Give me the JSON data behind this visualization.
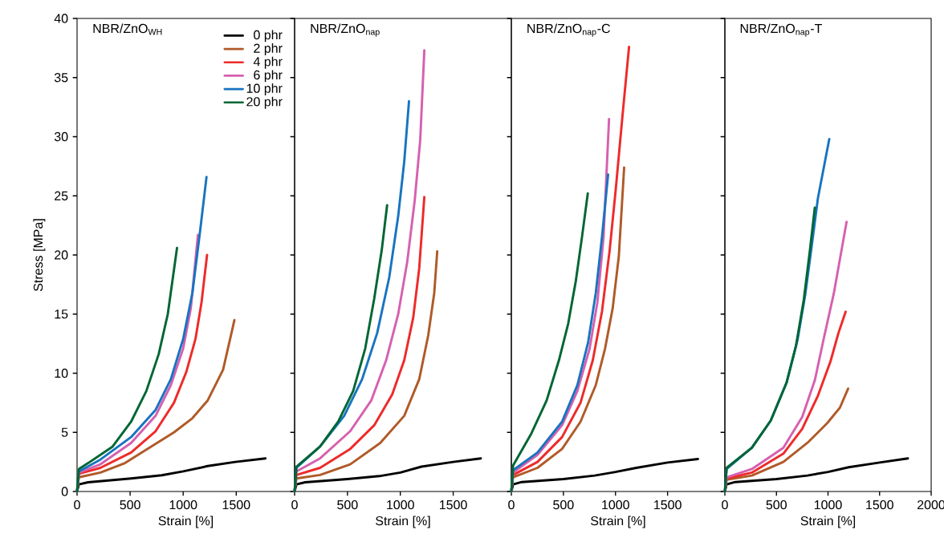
{
  "chart_data": [
    {
      "type": "line",
      "title": "NBR/ZnO$_{WH}$",
      "xlabel": "Strain [%]",
      "ylabel": "Stress [MPa]",
      "xlim": [
        0,
        2050
      ],
      "ylim": [
        0,
        40
      ],
      "xticks": [
        0,
        500,
        1000,
        1500
      ],
      "yticks": [
        0,
        5,
        10,
        15,
        20,
        25,
        30,
        35,
        40
      ],
      "legend": "top right",
      "series": [
        {
          "name": "0 phr",
          "color": "#000000",
          "x": [
            0,
            17,
            104,
            509,
            798,
            1000,
            1231,
            1491,
            1775
          ],
          "values": [
            0,
            0.6,
            0.78,
            1.1,
            1.37,
            1.7,
            2.15,
            2.5,
            2.8
          ]
        },
        {
          "name": "2 phr",
          "color": "#b05a28",
          "x": [
            0,
            17,
            220,
            451,
            682,
            913,
            1087,
            1231,
            1376,
            1483
          ],
          "values": [
            0,
            1.2,
            1.6,
            2.4,
            3.7,
            5.0,
            6.2,
            7.7,
            10.3,
            14.5
          ]
        },
        {
          "name": "4 phr",
          "color": "#ee2a2a",
          "x": [
            0,
            17,
            220,
            509,
            740,
            913,
            1029,
            1116,
            1173,
            1225
          ],
          "values": [
            0,
            1.5,
            2.0,
            3.3,
            5.1,
            7.5,
            10.1,
            12.9,
            16.0,
            20.0
          ]
        },
        {
          "name": "6 phr",
          "color": "#d660b0",
          "x": [
            0,
            17,
            220,
            509,
            740,
            884,
            1000,
            1072,
            1139
          ],
          "values": [
            0,
            1.6,
            2.3,
            4.1,
            6.4,
            9.0,
            12.1,
            15.5,
            21.7
          ]
        },
        {
          "name": "10 phr",
          "color": "#1874c0",
          "x": [
            0,
            17,
            220,
            509,
            740,
            884,
            1000,
            1087,
            1159,
            1220
          ],
          "values": [
            0,
            1.7,
            2.7,
            4.6,
            6.9,
            9.5,
            12.9,
            16.8,
            22.0,
            26.6
          ]
        },
        {
          "name": "20 phr",
          "color": "#006633",
          "x": [
            0,
            17,
            104,
            335,
            509,
            653,
            769,
            855,
            942
          ],
          "values": [
            0,
            1.9,
            2.4,
            3.8,
            5.9,
            8.5,
            11.6,
            15.0,
            20.6
          ]
        }
      ]
    },
    {
      "type": "line",
      "title": "NBR/ZnO$_{nap}$",
      "xlabel": "Strain [%]",
      "xlim": [
        0,
        2050
      ],
      "ylim": [
        0,
        40
      ],
      "xticks": [
        0,
        500,
        1000,
        1500
      ],
      "yticks": [
        0,
        5,
        10,
        15,
        20,
        25,
        30,
        35,
        40
      ],
      "tick_labels": "x",
      "series": [
        {
          "color": "#000000",
          "x": [
            0,
            17,
            100,
            500,
            800,
            1000,
            1200,
            1500,
            1761
          ],
          "values": [
            0,
            0.6,
            0.78,
            1.05,
            1.3,
            1.6,
            2.1,
            2.5,
            2.8
          ]
        },
        {
          "color": "#b05a28",
          "x": [
            0,
            17,
            241,
            526,
            810,
            1037,
            1179,
            1264,
            1321,
            1349
          ],
          "values": [
            0,
            1.1,
            1.4,
            2.3,
            4.1,
            6.4,
            9.5,
            13.2,
            16.8,
            20.3
          ]
        },
        {
          "color": "#ee2a2a",
          "x": [
            0,
            17,
            241,
            526,
            753,
            923,
            1037,
            1122,
            1179,
            1227
          ],
          "values": [
            0,
            1.4,
            2.0,
            3.6,
            5.6,
            8.2,
            11.1,
            14.7,
            18.9,
            24.9
          ]
        },
        {
          "color": "#d660b0",
          "x": [
            0,
            17,
            241,
            526,
            725,
            866,
            980,
            1065,
            1136,
            1188,
            1227
          ],
          "values": [
            0,
            1.7,
            2.8,
            5.1,
            7.7,
            11.1,
            15.0,
            19.4,
            24.6,
            29.7,
            37.3
          ]
        },
        {
          "color": "#1874c0",
          "x": [
            0,
            17,
            241,
            469,
            639,
            781,
            895,
            980,
            1037,
            1082
          ],
          "values": [
            0,
            2.0,
            3.8,
            6.4,
            9.5,
            13.4,
            18.1,
            23.3,
            27.9,
            33.0
          ]
        },
        {
          "color": "#006633",
          "x": [
            0,
            17,
            241,
            412,
            554,
            668,
            753,
            824,
            875
          ],
          "values": [
            0,
            2.1,
            3.8,
            5.9,
            8.5,
            12.1,
            16.3,
            20.4,
            24.2
          ]
        }
      ]
    },
    {
      "type": "line",
      "title": "NBR/ZnO$_{nap}$-C",
      "xlabel": "Strain [%]",
      "xlim": [
        0,
        2050
      ],
      "ylim": [
        0,
        40
      ],
      "xticks": [
        0,
        500,
        1000,
        1500
      ],
      "yticks": [
        0,
        5,
        10,
        15,
        20,
        25,
        30,
        35,
        40
      ],
      "tick_labels": "x",
      "series": [
        {
          "color": "#000000",
          "x": [
            0,
            17,
            100,
            500,
            800,
            1000,
            1200,
            1500,
            1791
          ],
          "values": [
            0,
            0.6,
            0.8,
            1.05,
            1.35,
            1.65,
            2.0,
            2.45,
            2.75
          ]
        },
        {
          "color": "#b05a28",
          "x": [
            0,
            15,
            251,
            487,
            664,
            811,
            900,
            973,
            1032,
            1083
          ],
          "values": [
            0,
            1.2,
            2.0,
            3.6,
            5.9,
            9.0,
            12.1,
            15.5,
            19.9,
            27.4
          ]
        },
        {
          "color": "#ee2a2a",
          "x": [
            0,
            17,
            251,
            487,
            664,
            782,
            870,
            944,
            1003,
            1062,
            1130
          ],
          "values": [
            0,
            1.4,
            2.5,
            4.6,
            7.5,
            11.1,
            15.2,
            20.4,
            25.6,
            31.3,
            37.6
          ]
        },
        {
          "color": "#d660b0",
          "x": [
            0,
            17,
            251,
            487,
            634,
            752,
            826,
            885,
            938
          ],
          "values": [
            0,
            1.6,
            3.1,
            5.6,
            8.5,
            12.1,
            16.0,
            21.5,
            31.5
          ]
        },
        {
          "color": "#1874c0",
          "x": [
            0,
            17,
            251,
            487,
            634,
            737,
            811,
            870,
            929
          ],
          "values": [
            0,
            1.8,
            3.3,
            5.9,
            9.0,
            12.6,
            16.8,
            21.5,
            26.8
          ]
        },
        {
          "color": "#006633",
          "x": [
            0,
            17,
            192,
            339,
            457,
            546,
            619,
            678,
            734
          ],
          "values": [
            0,
            2.2,
            4.9,
            7.7,
            11.1,
            14.2,
            17.8,
            21.5,
            25.2
          ]
        }
      ]
    },
    {
      "type": "line",
      "title": "NBR/ZnO$_{nap}$-T",
      "xlabel": "Strain [%]",
      "xlim": [
        0,
        2000
      ],
      "ylim": [
        0,
        40
      ],
      "xticks": [
        0,
        500,
        1000,
        1500,
        2000
      ],
      "yticks": [
        0,
        5,
        10,
        15,
        20,
        25,
        30,
        35,
        40
      ],
      "tick_labels": "x",
      "series": [
        {
          "color": "#000000",
          "x": [
            0,
            17,
            100,
            500,
            800,
            1000,
            1200,
            1500,
            1774
          ],
          "values": [
            0,
            0.6,
            0.8,
            1.05,
            1.35,
            1.65,
            2.05,
            2.45,
            2.8
          ]
        },
        {
          "color": "#b05a28",
          "x": [
            0,
            17,
            262,
            567,
            811,
            994,
            1116,
            1195
          ],
          "values": [
            0,
            1.0,
            1.35,
            2.5,
            4.2,
            5.8,
            7.1,
            8.7
          ]
        },
        {
          "color": "#ee2a2a",
          "x": [
            0,
            17,
            262,
            567,
            750,
            902,
            1024,
            1101,
            1171
          ],
          "values": [
            0,
            1.1,
            1.6,
            3.2,
            5.3,
            8.1,
            11.0,
            13.4,
            15.2
          ]
        },
        {
          "color": "#d660b0",
          "x": [
            0,
            17,
            262,
            567,
            750,
            872,
            963,
            1055,
            1131,
            1180
          ],
          "values": [
            0,
            1.2,
            1.9,
            3.7,
            6.3,
            9.4,
            13.1,
            16.7,
            20.4,
            22.8
          ]
        },
        {
          "color": "#1874c0",
          "x": [
            0,
            17,
            262,
            445,
            598,
            704,
            780,
            841,
            902,
            1012
          ],
          "values": [
            0,
            1.9,
            3.7,
            6.0,
            9.2,
            12.8,
            16.7,
            20.7,
            24.8,
            29.8
          ]
        },
        {
          "color": "#006633",
          "x": [
            0,
            17,
            262,
            445,
            598,
            689,
            765,
            826,
            872
          ],
          "values": [
            0,
            2.0,
            3.7,
            6.0,
            9.2,
            12.3,
            16.2,
            20.5,
            24.0
          ]
        }
      ]
    }
  ]
}
